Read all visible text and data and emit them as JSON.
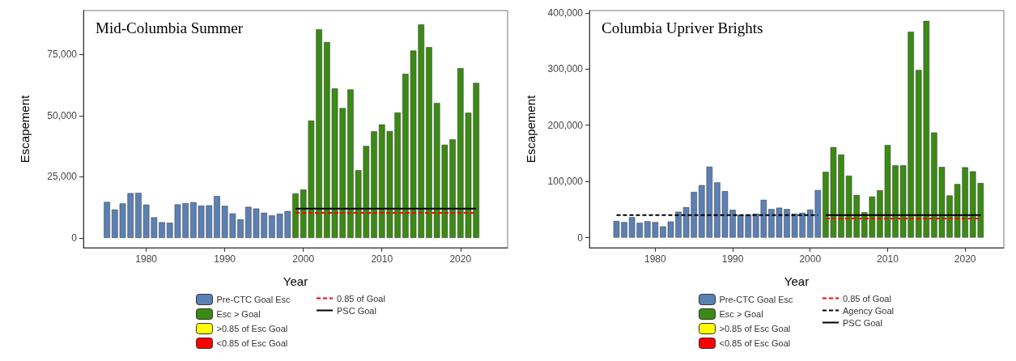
{
  "chart_data": [
    {
      "type": "bar",
      "title": "Mid-Columbia Summer",
      "xlabel": "Year",
      "ylabel": "Escapement",
      "stacked": true,
      "grid": false,
      "legend": "bottom",
      "x": [
        1975,
        1976,
        1977,
        1978,
        1979,
        1980,
        1981,
        1982,
        1983,
        1984,
        1985,
        1986,
        1987,
        1988,
        1989,
        1990,
        1991,
        1992,
        1993,
        1994,
        1995,
        1996,
        1997,
        1998,
        1999,
        2000,
        2001,
        2002,
        2003,
        2004,
        2005,
        2006,
        2007,
        2008,
        2009,
        2010,
        2011,
        2012,
        2013,
        2014,
        2015,
        2016,
        2017,
        2018,
        2019,
        2020,
        2021,
        2022
      ],
      "xlim": [
        1972,
        2026
      ],
      "xticks": [
        1980,
        1990,
        2000,
        2010,
        2020
      ],
      "ylim": [
        -4000,
        93000
      ],
      "yticks": [
        {
          "value": 0,
          "label": "0"
        },
        {
          "value": 25000,
          "label": "25,000"
        },
        {
          "value": 50000,
          "label": "50,000"
        },
        {
          "value": 75000,
          "label": "75,000"
        }
      ],
      "series": [
        {
          "name": "Pre-CTC Goal Esc",
          "color": "#5b80b4",
          "values": [
            14700,
            11600,
            14100,
            18300,
            18400,
            13600,
            8400,
            6400,
            6200,
            13700,
            14200,
            14600,
            13200,
            13300,
            17100,
            13100,
            10000,
            7600,
            12700,
            12000,
            10300,
            9200,
            9900,
            11000,
            null,
            null,
            null,
            null,
            null,
            null,
            null,
            null,
            null,
            null,
            null,
            null,
            null,
            null,
            null,
            null,
            null,
            null,
            null,
            null,
            null,
            null,
            null,
            null
          ]
        },
        {
          "name": "Esc > Goal",
          "color": "#3b8a14",
          "values": [
            null,
            null,
            null,
            null,
            null,
            null,
            null,
            null,
            null,
            null,
            null,
            null,
            null,
            null,
            null,
            null,
            null,
            null,
            null,
            null,
            null,
            null,
            null,
            null,
            18200,
            19800,
            48000,
            85300,
            80100,
            61100,
            53100,
            60700,
            27700,
            37600,
            43600,
            46400,
            43700,
            51300,
            67100,
            76600,
            87300,
            78000,
            55200,
            38100,
            40300,
            69400,
            51200,
            63400
          ]
        },
        {
          "name": ">0.85 of Esc Goal",
          "color": "#ffff00",
          "values": [
            null,
            null,
            null,
            null,
            null,
            null,
            null,
            null,
            null,
            null,
            null,
            null,
            null,
            null,
            null,
            null,
            null,
            null,
            null,
            null,
            null,
            null,
            null,
            null,
            null,
            null,
            null,
            null,
            null,
            null,
            null,
            null,
            null,
            null,
            null,
            null,
            null,
            null,
            null,
            null,
            null,
            null,
            null,
            null,
            null,
            null,
            null,
            null
          ]
        },
        {
          "name": "<0.85 of Esc Goal",
          "color": "#ff0000",
          "values": [
            null,
            null,
            null,
            null,
            null,
            null,
            null,
            null,
            null,
            null,
            null,
            null,
            null,
            null,
            null,
            null,
            null,
            null,
            null,
            null,
            null,
            null,
            null,
            null,
            null,
            null,
            null,
            null,
            null,
            null,
            null,
            null,
            null,
            null,
            null,
            null,
            null,
            null,
            null,
            null,
            null,
            null,
            null,
            null,
            null,
            null,
            null,
            null
          ]
        },
        {
          "name": "0.85 of Goal",
          "type": "line",
          "line_style": "dashed",
          "marker": "none",
          "color": "#ff0000",
          "values": [
            null,
            null,
            null,
            null,
            null,
            null,
            null,
            null,
            null,
            null,
            null,
            null,
            null,
            null,
            null,
            null,
            null,
            null,
            null,
            null,
            null,
            null,
            null,
            null,
            10200,
            10200,
            10200,
            10200,
            10200,
            10200,
            10200,
            10200,
            10200,
            10200,
            10200,
            10200,
            10200,
            10200,
            10200,
            10200,
            10200,
            10200,
            10200,
            10200,
            10200,
            10200,
            10200,
            10200
          ]
        },
        {
          "name": "PSC Goal",
          "type": "line",
          "line_style": "solid",
          "marker": "none",
          "color": "#000000",
          "values": [
            null,
            null,
            null,
            null,
            null,
            null,
            null,
            null,
            null,
            null,
            null,
            null,
            null,
            null,
            null,
            null,
            null,
            null,
            null,
            null,
            null,
            null,
            null,
            null,
            12000,
            12000,
            12000,
            12000,
            12000,
            12000,
            12000,
            12000,
            12000,
            12000,
            12000,
            12000,
            12000,
            12000,
            12000,
            12000,
            12000,
            12000,
            12000,
            12000,
            12000,
            12000,
            12000,
            12000
          ]
        }
      ]
    },
    {
      "type": "bar",
      "title": "Columbia Upriver Brights",
      "xlabel": "Year",
      "ylabel": "Escapement",
      "stacked": true,
      "grid": false,
      "legend": "bottom",
      "x": [
        1975,
        1976,
        1977,
        1978,
        1979,
        1980,
        1981,
        1982,
        1983,
        1984,
        1985,
        1986,
        1987,
        1988,
        1989,
        1990,
        1991,
        1992,
        1993,
        1994,
        1995,
        1996,
        1997,
        1998,
        1999,
        2000,
        2001,
        2002,
        2003,
        2004,
        2005,
        2006,
        2007,
        2008,
        2009,
        2010,
        2011,
        2012,
        2013,
        2014,
        2015,
        2016,
        2017,
        2018,
        2019,
        2020,
        2021,
        2022
      ],
      "xlim": [
        1971.5,
        2025
      ],
      "xticks": [
        1980,
        1990,
        2000,
        2010,
        2020
      ],
      "ylim": [
        -18000,
        404000
      ],
      "yticks": [
        {
          "value": 0,
          "label": "0"
        },
        {
          "value": 100000,
          "label": "100,000"
        },
        {
          "value": 200000,
          "label": "200,000"
        },
        {
          "value": 300000,
          "label": "300,000"
        },
        {
          "value": 400000,
          "label": "400,000"
        }
      ],
      "series": [
        {
          "name": "Pre-CTC Goal Esc",
          "color": "#5b80b4",
          "values": [
            29500,
            27500,
            36200,
            26100,
            29000,
            27500,
            19800,
            28500,
            45900,
            54100,
            81200,
            93200,
            126100,
            98100,
            82600,
            49300,
            40600,
            41100,
            42500,
            67100,
            50700,
            53100,
            50700,
            42500,
            44000,
            49800,
            84500,
            null,
            null,
            null,
            null,
            null,
            null,
            null,
            null,
            null,
            null,
            null,
            null,
            null,
            null,
            null,
            null,
            null,
            null,
            null,
            null,
            null
          ]
        },
        {
          "name": "Esc > Goal",
          "color": "#3b8a14",
          "values": [
            null,
            null,
            null,
            null,
            null,
            null,
            null,
            null,
            null,
            null,
            null,
            null,
            null,
            null,
            null,
            null,
            null,
            null,
            null,
            null,
            null,
            null,
            null,
            null,
            null,
            null,
            null,
            116900,
            160900,
            147800,
            110100,
            75800,
            44900,
            72900,
            84100,
            164700,
            128500,
            128500,
            366200,
            298100,
            385500,
            187000,
            125600,
            74900,
            95200,
            125100,
            117900,
            97100
          ]
        },
        {
          "name": ">0.85 of Esc Goal",
          "color": "#ffff00",
          "values": [
            null,
            null,
            null,
            null,
            null,
            null,
            null,
            null,
            null,
            null,
            null,
            null,
            null,
            null,
            null,
            null,
            null,
            null,
            null,
            null,
            null,
            null,
            null,
            null,
            null,
            null,
            null,
            null,
            null,
            null,
            null,
            null,
            null,
            null,
            null,
            null,
            null,
            null,
            null,
            null,
            null,
            null,
            null,
            null,
            null,
            null,
            null,
            null
          ]
        },
        {
          "name": "<0.85 of Esc Goal",
          "color": "#ff0000",
          "values": [
            null,
            null,
            null,
            null,
            null,
            null,
            null,
            null,
            null,
            null,
            null,
            null,
            null,
            null,
            null,
            null,
            null,
            null,
            null,
            null,
            null,
            null,
            null,
            null,
            null,
            null,
            null,
            null,
            null,
            null,
            null,
            null,
            null,
            null,
            null,
            null,
            null,
            null,
            null,
            null,
            null,
            null,
            null,
            null,
            null,
            null,
            null,
            null
          ]
        },
        {
          "name": "0.85 of Goal",
          "type": "line",
          "line_style": "dashed",
          "marker": "none",
          "color": "#ff0000",
          "values": [
            null,
            null,
            null,
            null,
            null,
            null,
            null,
            null,
            null,
            null,
            null,
            null,
            null,
            null,
            null,
            null,
            null,
            null,
            null,
            null,
            null,
            null,
            null,
            null,
            null,
            null,
            null,
            34000,
            34000,
            34000,
            34000,
            34000,
            34000,
            34000,
            34000,
            34000,
            34000,
            34000,
            34000,
            34000,
            34000,
            34000,
            34000,
            34000,
            34000,
            34000,
            34000,
            34000
          ]
        },
        {
          "name": "Agency Goal",
          "type": "line",
          "line_style": "dashed",
          "marker": "none",
          "color": "#000000",
          "values": [
            40000,
            40000,
            40000,
            40000,
            40000,
            40000,
            40000,
            40000,
            40000,
            40000,
            40000,
            40000,
            40000,
            40000,
            40000,
            40000,
            40000,
            40000,
            40000,
            40000,
            40000,
            40000,
            40000,
            40000,
            40000,
            40000,
            40000,
            null,
            null,
            null,
            null,
            null,
            null,
            null,
            null,
            null,
            null,
            null,
            null,
            null,
            null,
            null,
            null,
            null,
            null,
            null,
            null,
            null
          ]
        },
        {
          "name": "PSC Goal",
          "type": "line",
          "line_style": "solid",
          "marker": "none",
          "color": "#000000",
          "values": [
            null,
            null,
            null,
            null,
            null,
            null,
            null,
            null,
            null,
            null,
            null,
            null,
            null,
            null,
            null,
            null,
            null,
            null,
            null,
            null,
            null,
            null,
            null,
            null,
            null,
            null,
            null,
            40000,
            40000,
            40000,
            40000,
            40000,
            40000,
            40000,
            40000,
            40000,
            40000,
            40000,
            40000,
            40000,
            40000,
            40000,
            40000,
            40000,
            40000,
            40000,
            40000,
            40000
          ]
        }
      ]
    }
  ]
}
